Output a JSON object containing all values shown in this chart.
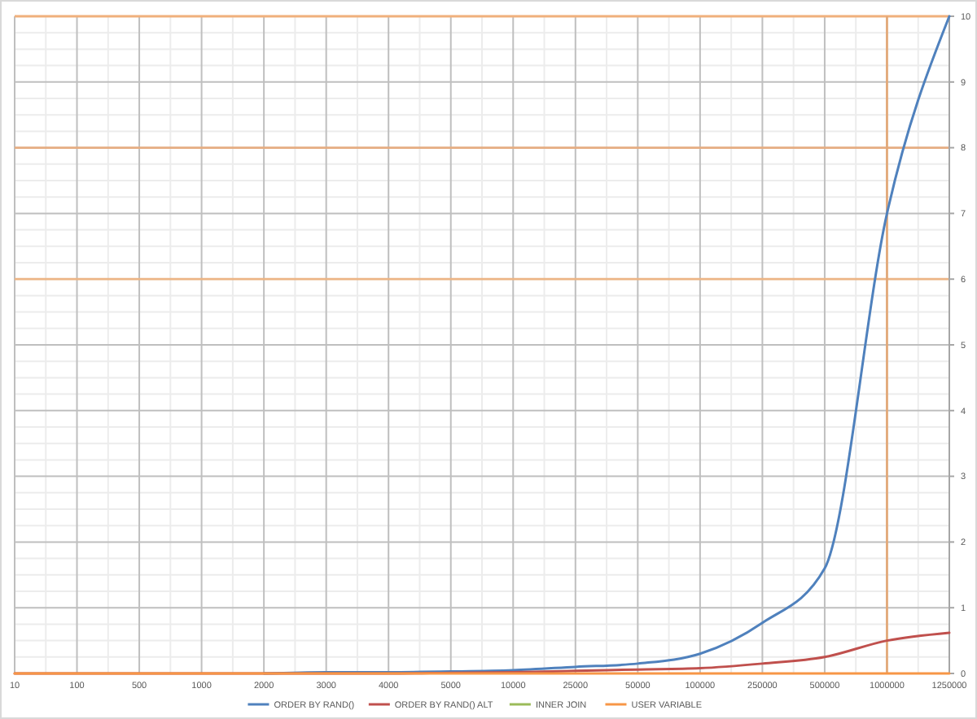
{
  "chart_data": {
    "type": "line",
    "categories": [
      "10",
      "100",
      "500",
      "1000",
      "2000",
      "3000",
      "4000",
      "5000",
      "10000",
      "25000",
      "50000",
      "100000",
      "250000",
      "500000",
      "1000000",
      "1250000"
    ],
    "series": [
      {
        "name": "ORDER BY RAND()",
        "color": "#4f81bd",
        "values": [
          null,
          null,
          null,
          null,
          0,
          0.02,
          0.02,
          0.03,
          0.05,
          0.1,
          0.15,
          0.3,
          0.77,
          1.6,
          7,
          10
        ]
      },
      {
        "name": "ORDER BY RAND() ALT",
        "color": "#c0504d",
        "values": [
          0,
          0,
          0,
          0,
          0,
          0,
          0,
          0.01,
          0.02,
          0.04,
          0.06,
          0.08,
          0.15,
          0.25,
          0.5,
          0.62
        ]
      },
      {
        "name": "INNER JOIN",
        "color": "#9bbb59",
        "values": [
          null,
          null,
          null,
          null,
          null,
          null,
          null,
          null,
          null,
          null,
          null,
          null,
          null,
          null,
          null,
          null
        ]
      },
      {
        "name": "USER VARIABLE",
        "color": "#f79646",
        "values": [
          0,
          0,
          0,
          0,
          0,
          0,
          0,
          0,
          0,
          0,
          0,
          0,
          0,
          0,
          0,
          0
        ]
      }
    ],
    "ylim": [
      0,
      10
    ],
    "yticks": [
      0,
      {
        "value": 0.25,
        "label": null
      },
      {
        "value": 0.5,
        "label": null
      },
      {
        "value": 0.75,
        "label": null
      },
      1,
      {
        "value": 1.25,
        "label": null
      },
      {
        "value": 1.5,
        "label": null
      },
      {
        "value": 1.75,
        "label": null
      },
      2,
      {
        "value": 2.25,
        "label": null
      },
      {
        "value": 2.5,
        "label": null
      },
      {
        "value": 2.75,
        "label": null
      },
      3,
      {
        "value": 3.25,
        "label": null
      },
      {
        "value": 3.5,
        "label": null
      },
      {
        "value": 3.75,
        "label": null
      },
      4,
      {
        "value": 4.25,
        "label": null
      },
      {
        "value": 4.5,
        "label": null
      },
      {
        "value": 4.75,
        "label": null
      },
      5,
      {
        "value": 5.25,
        "label": null
      },
      {
        "value": 5.5,
        "label": null
      },
      {
        "value": 5.75,
        "label": null
      },
      6,
      {
        "value": 6.25,
        "label": null
      },
      {
        "value": 6.5,
        "label": null
      },
      {
        "value": 6.75,
        "label": null
      },
      7,
      {
        "value": 7.25,
        "label": null
      },
      {
        "value": 7.5,
        "label": null
      },
      {
        "value": 7.75,
        "label": null
      },
      8,
      {
        "value": 8.25,
        "label": null
      },
      {
        "value": 8.5,
        "label": null
      },
      {
        "value": 8.75,
        "label": null
      },
      9,
      {
        "value": 9.25,
        "label": null
      },
      {
        "value": 9.5,
        "label": null
      },
      {
        "value": 9.75,
        "label": null
      },
      10
    ],
    "grid": true,
    "legend": "bottom",
    "line_style": "solid",
    "ref_lines": [
      {
        "axis": "y",
        "value": 6,
        "color": "#ecb585"
      },
      {
        "axis": "y",
        "value": 8,
        "color": "#e5ad82"
      },
      {
        "axis": "y",
        "value": 10,
        "color": "#f0b07c"
      },
      {
        "axis": "x",
        "value": "1000000",
        "color": "#e2a878"
      }
    ]
  }
}
